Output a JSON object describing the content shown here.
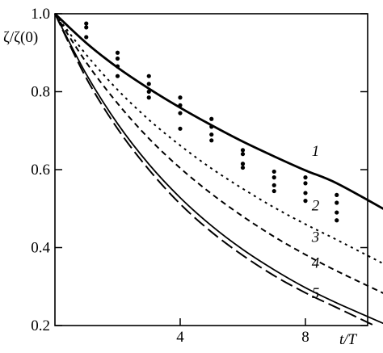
{
  "chart_data": {
    "type": "line",
    "ylabel": "ζ/ζ(0)",
    "xlabel": "t/T",
    "xlim": [
      0,
      11
    ],
    "ylim": [
      0.2,
      1.0
    ],
    "grid": false,
    "legend": "none",
    "xticks": [
      {
        "value": 4,
        "label": "4"
      },
      {
        "value": 8,
        "label": "8"
      }
    ],
    "yticks": [
      {
        "value": 0.2,
        "label": "0.2"
      },
      {
        "value": 0.4,
        "label": "0.4"
      },
      {
        "value": 0.6,
        "label": "0.6"
      },
      {
        "value": 0.8,
        "label": "0.8"
      },
      {
        "value": 1.0,
        "label": "1.0"
      }
    ],
    "series": [
      {
        "label": "1",
        "style": "solid-bold",
        "label_at": [
          8.2,
          0.635
        ],
        "x": [
          0,
          1,
          2,
          3,
          4,
          5,
          6,
          7,
          8,
          9,
          10.7
        ],
        "y": [
          1.0,
          0.925,
          0.862,
          0.808,
          0.759,
          0.714,
          0.672,
          0.634,
          0.598,
          0.565,
          0.49
        ]
      },
      {
        "label": "2",
        "style": "dotted",
        "label_at": [
          8.2,
          0.495
        ],
        "x": [
          0,
          1,
          2,
          3,
          4,
          5,
          6,
          7,
          8,
          9,
          10.7
        ],
        "y": [
          1.0,
          0.895,
          0.805,
          0.728,
          0.662,
          0.603,
          0.551,
          0.503,
          0.46,
          0.42,
          0.35
        ]
      },
      {
        "label": "3",
        "style": "short-dash",
        "label_at": [
          8.2,
          0.415
        ],
        "x": [
          0,
          1,
          2,
          3,
          4,
          5,
          6,
          7,
          8,
          9,
          10.7
        ],
        "y": [
          1.0,
          0.875,
          0.77,
          0.68,
          0.604,
          0.538,
          0.48,
          0.428,
          0.382,
          0.34,
          0.275
        ]
      },
      {
        "label": "4",
        "style": "solid",
        "label_at": [
          8.2,
          0.348
        ],
        "x": [
          0,
          1,
          2,
          3,
          4,
          5,
          6,
          7,
          8,
          9,
          10.5
        ],
        "y": [
          1.0,
          0.845,
          0.718,
          0.614,
          0.528,
          0.456,
          0.395,
          0.343,
          0.297,
          0.258,
          0.205
        ]
      },
      {
        "label": "5",
        "style": "long-dash",
        "label_at": [
          8.2,
          0.27
        ],
        "x": [
          0,
          1,
          2,
          3,
          4,
          5,
          6,
          7,
          8,
          9,
          10.2
        ],
        "y": [
          1.0,
          0.835,
          0.705,
          0.6,
          0.512,
          0.44,
          0.38,
          0.328,
          0.284,
          0.246,
          0.2
        ]
      }
    ],
    "points": {
      "x": [
        1,
        1,
        1,
        2,
        2,
        2,
        2,
        3,
        3,
        3,
        3,
        4,
        4,
        4,
        4,
        5,
        5,
        5,
        5,
        6,
        6,
        6,
        6,
        7,
        7,
        7,
        7,
        8,
        8,
        8,
        8,
        9,
        9,
        9,
        9
      ],
      "y": [
        0.975,
        0.965,
        0.94,
        0.9,
        0.885,
        0.865,
        0.84,
        0.84,
        0.82,
        0.8,
        0.785,
        0.785,
        0.765,
        0.745,
        0.705,
        0.73,
        0.71,
        0.69,
        0.675,
        0.65,
        0.64,
        0.615,
        0.605,
        0.595,
        0.58,
        0.56,
        0.545,
        0.58,
        0.565,
        0.54,
        0.52,
        0.535,
        0.515,
        0.49,
        0.47
      ]
    }
  }
}
